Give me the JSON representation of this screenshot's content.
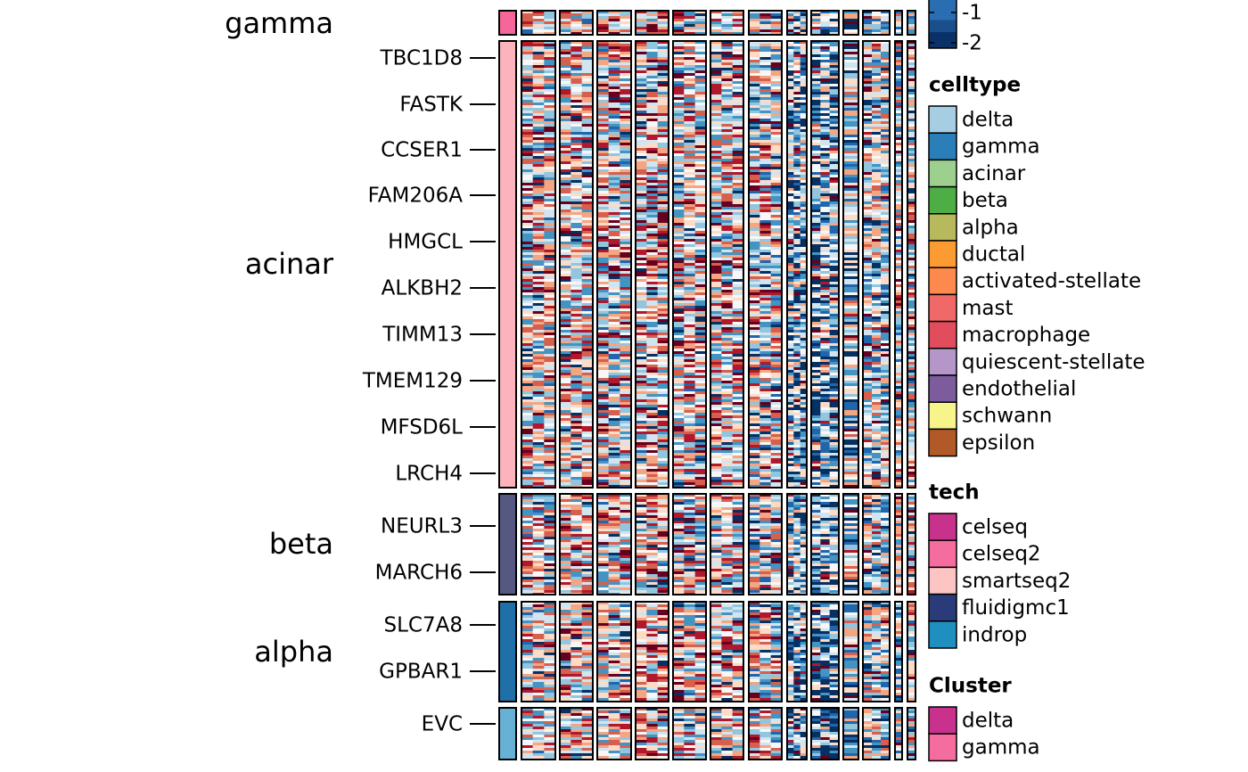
{
  "chart_data": {
    "type": "heatmap",
    "title": "",
    "xlabel": "",
    "ylabel": "",
    "color_scale": {
      "visible_ticks": [
        -1,
        -2
      ],
      "colors": [
        "#053061",
        "#2166ac",
        "#4393c3",
        "#92c5de",
        "#d1e5f0",
        "#f7f7f7",
        "#fddbc7",
        "#f4a582",
        "#d6604d",
        "#b2182b",
        "#67001f"
      ]
    },
    "row_groups": [
      {
        "label": "gamma",
        "color": "#f5679b",
        "genes": []
      },
      {
        "label": "acinar",
        "color": "#fcb3bc",
        "genes": [
          "TBC1D8",
          "FASTK",
          "CCSER1",
          "FAM206A",
          "HMGCL",
          "ALKBH2",
          "TIMM13",
          "TMEM129",
          "MFSD6L",
          "LRCH4"
        ]
      },
      {
        "label": "beta",
        "color": "#565882",
        "genes": [
          "NEURL3",
          "MARCH6"
        ]
      },
      {
        "label": "alpha",
        "color": "#1f70a8",
        "genes": [
          "SLC7A8",
          "GPBAR1"
        ]
      },
      {
        "label": "",
        "color": "#67b2d4",
        "genes": [
          "EVC"
        ]
      }
    ],
    "column_blocks": 12,
    "legends": [
      {
        "title": "celltype",
        "items": [
          {
            "label": "delta",
            "color": "#a6cee3"
          },
          {
            "label": "gamma",
            "color": "#2b7fb9"
          },
          {
            "label": "acinar",
            "color": "#9dd08f"
          },
          {
            "label": "beta",
            "color": "#4cae45"
          },
          {
            "label": "alpha",
            "color": "#b8b85c"
          },
          {
            "label": "ductal",
            "color": "#fd9b33"
          },
          {
            "label": "activated-stellate",
            "color": "#fd8a4c"
          },
          {
            "label": "mast",
            "color": "#f06868"
          },
          {
            "label": "macrophage",
            "color": "#e14d5c"
          },
          {
            "label": "quiescent-stellate",
            "color": "#b496c8"
          },
          {
            "label": "endothelial",
            "color": "#7d5c9d"
          },
          {
            "label": "schwann",
            "color": "#f8f48c"
          },
          {
            "label": "epsilon",
            "color": "#b15928"
          }
        ]
      },
      {
        "title": "tech",
        "items": [
          {
            "label": "celseq",
            "color": "#c8318c"
          },
          {
            "label": "celseq2",
            "color": "#f56c9f"
          },
          {
            "label": "smartseq2",
            "color": "#fcc5c3"
          },
          {
            "label": "fluidigmc1",
            "color": "#2b3a78"
          },
          {
            "label": "indrop",
            "color": "#1f8fc0"
          }
        ]
      },
      {
        "title": "Cluster",
        "items": [
          {
            "label": "delta",
            "color": "#c8318c"
          },
          {
            "label": "gamma",
            "color": "#f56c9f"
          }
        ]
      }
    ]
  }
}
